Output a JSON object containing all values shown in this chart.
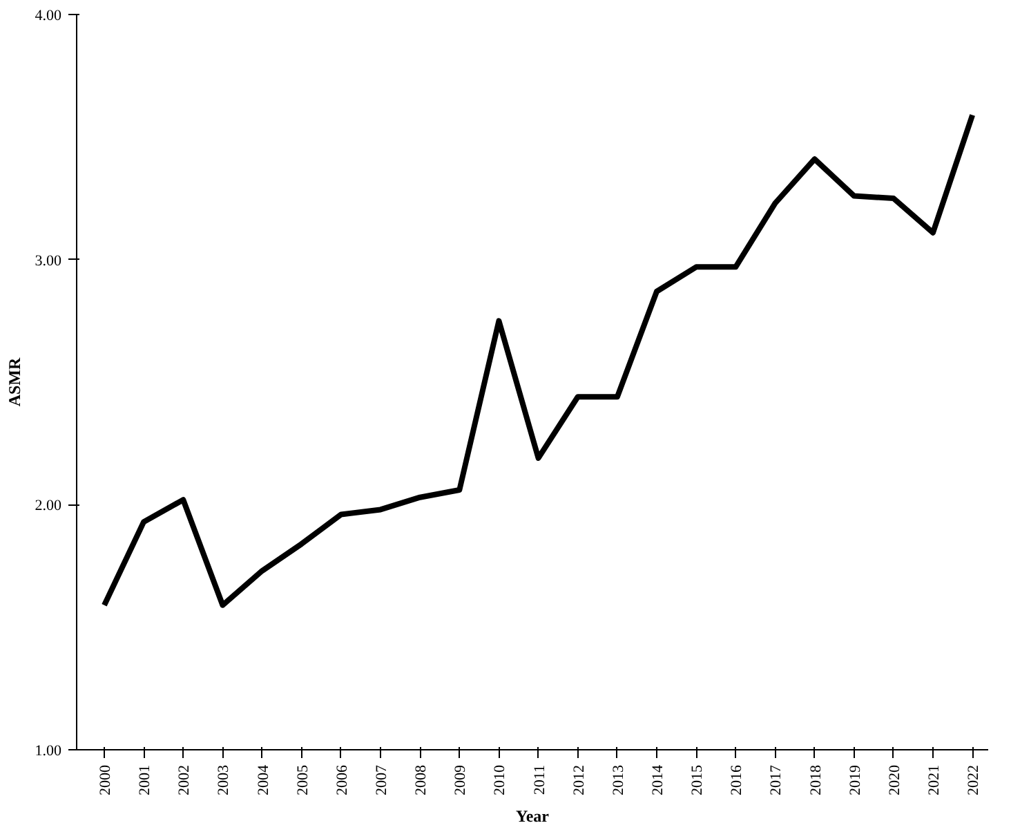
{
  "chart_data": {
    "type": "line",
    "xlabel": "Year",
    "ylabel": "ASMR",
    "categories": [
      "2000",
      "2001",
      "2002",
      "2003",
      "2004",
      "2005",
      "2006",
      "2007",
      "2008",
      "2009",
      "2010",
      "2011",
      "2012",
      "2013",
      "2014",
      "2015",
      "2016",
      "2017",
      "2018",
      "2019",
      "2020",
      "2021",
      "2022"
    ],
    "series": [
      {
        "color": "#000000",
        "values": [
          1.59,
          1.93,
          2.02,
          1.59,
          1.73,
          1.84,
          1.96,
          1.98,
          2.03,
          2.06,
          2.75,
          2.19,
          2.44,
          2.44,
          2.87,
          2.97,
          2.97,
          3.23,
          3.41,
          3.26,
          3.25,
          3.11,
          3.59
        ]
      }
    ],
    "ylim": [
      1,
      4
    ],
    "yticks": [
      {
        "value": 1,
        "label": "1.00"
      },
      {
        "value": 2,
        "label": "2.00"
      },
      {
        "value": 3,
        "label": "3.00"
      },
      {
        "value": 4,
        "label": "4.00"
      }
    ],
    "grid": false,
    "marker": "none",
    "line_style": "solid"
  }
}
